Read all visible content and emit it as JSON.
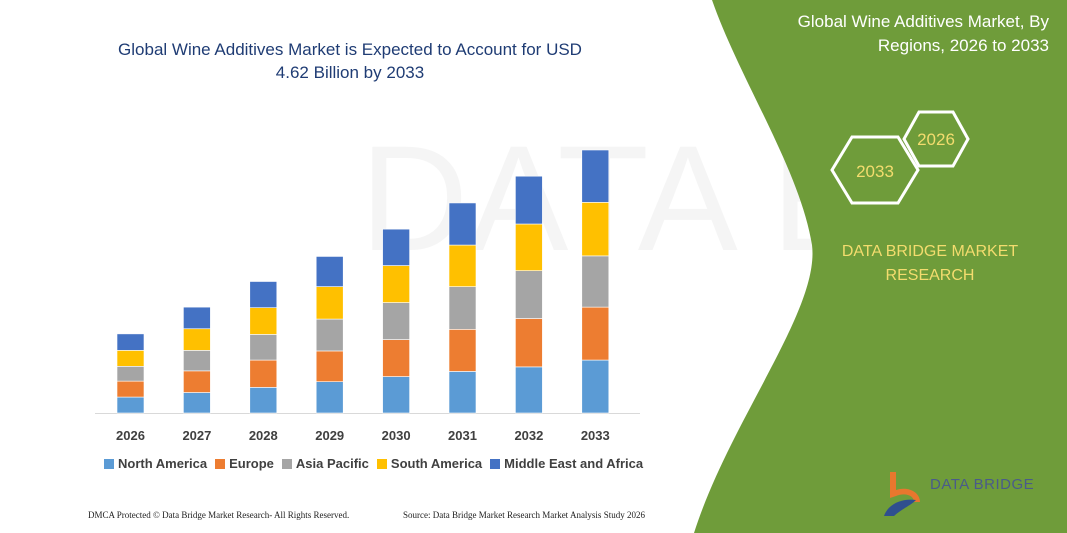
{
  "header": {
    "title": "Global Wine Additives Market is Expected to Account for USD 4.62 Billion by 2033"
  },
  "side_panel": {
    "title": "Global Wine Additives Market, By Regions, 2026 to 2033",
    "hex_start": "2026",
    "hex_end": "2033",
    "brand": "DATA BRIDGE MARKET RESEARCH",
    "logo_text": "DATA BRIDGE",
    "panel_color": "#6f9c3a"
  },
  "footer": {
    "copyright": "DMCA Protected © Data Bridge Market Research- All Rights Reserved.",
    "source": "Source: Data Bridge Market Research  Market Analysis Study 2026"
  },
  "chart_data": {
    "type": "bar",
    "stacked": true,
    "title": "Global Wine Additives Market is Expected to Account for USD 4.62 Billion by 2033",
    "categories": [
      "2026",
      "2027",
      "2028",
      "2029",
      "2030",
      "2031",
      "2032",
      "2033"
    ],
    "series": [
      {
        "name": "North America",
        "color": "#5b9bd5",
        "values": [
          0.28,
          0.36,
          0.45,
          0.55,
          0.64,
          0.73,
          0.81,
          0.93
        ]
      },
      {
        "name": "Europe",
        "color": "#ed7d31",
        "values": [
          0.28,
          0.38,
          0.48,
          0.54,
          0.65,
          0.74,
          0.85,
          0.93
        ]
      },
      {
        "name": "Asia Pacific",
        "color": "#a5a5a5",
        "values": [
          0.26,
          0.36,
          0.45,
          0.56,
          0.65,
          0.75,
          0.84,
          0.9
        ]
      },
      {
        "name": "South America",
        "color": "#ffc000",
        "values": [
          0.28,
          0.38,
          0.47,
          0.57,
          0.65,
          0.73,
          0.82,
          0.94
        ]
      },
      {
        "name": "Middle East and Africa",
        "color": "#4472c4",
        "values": [
          0.29,
          0.38,
          0.46,
          0.53,
          0.64,
          0.74,
          0.84,
          0.92
        ]
      }
    ],
    "ylim": [
      0,
      4.62
    ],
    "y_axis_visible": false,
    "grid": false,
    "legend_position": "bottom"
  }
}
